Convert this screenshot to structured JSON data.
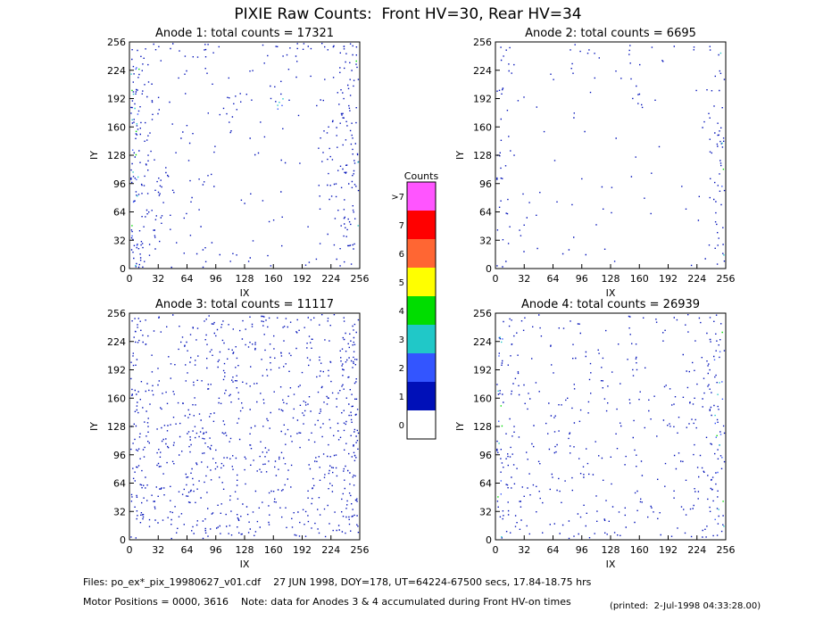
{
  "title": "PIXIE Raw Counts:  Front HV=30, Rear HV=34",
  "chart_data": [
    {
      "type": "heatmap",
      "title": "Anode 1: total counts = 17321",
      "xlabel": "IX",
      "ylabel": "IY",
      "xlim": [
        0,
        256
      ],
      "ylim": [
        0,
        256
      ],
      "xticks": [
        0,
        32,
        64,
        96,
        128,
        160,
        192,
        224,
        256
      ],
      "yticks": [
        0,
        32,
        64,
        96,
        128,
        160,
        192,
        224,
        256
      ]
    },
    {
      "type": "heatmap",
      "title": "Anode 2: total counts = 6695",
      "xlabel": "IX",
      "ylabel": "IY",
      "xlim": [
        0,
        256
      ],
      "ylim": [
        0,
        256
      ],
      "xticks": [
        0,
        32,
        64,
        96,
        128,
        160,
        192,
        224,
        256
      ],
      "yticks": [
        0,
        32,
        64,
        96,
        128,
        160,
        192,
        224,
        256
      ]
    },
    {
      "type": "heatmap",
      "title": "Anode 3: total counts = 11117",
      "xlabel": "IX",
      "ylabel": "IY",
      "xlim": [
        0,
        256
      ],
      "ylim": [
        0,
        256
      ],
      "xticks": [
        0,
        32,
        64,
        96,
        128,
        160,
        192,
        224,
        256
      ],
      "yticks": [
        0,
        32,
        64,
        96,
        128,
        160,
        192,
        224,
        256
      ]
    },
    {
      "type": "heatmap",
      "title": "Anode 4: total counts = 26939",
      "xlabel": "IX",
      "ylabel": "IY",
      "xlim": [
        0,
        256
      ],
      "ylim": [
        0,
        256
      ],
      "xticks": [
        0,
        32,
        64,
        96,
        128,
        160,
        192,
        224,
        256
      ],
      "yticks": [
        0,
        32,
        64,
        96,
        128,
        160,
        192,
        224,
        256
      ]
    }
  ],
  "colorbar": {
    "title": "Counts",
    "labels": [
      "0",
      "1",
      "2",
      "3",
      "4",
      "5",
      "6",
      "7",
      ">7"
    ],
    "colors": [
      "#ffffff",
      "#0010b8",
      "#3355ff",
      "#20c8c8",
      "#00dd00",
      "#ffff00",
      "#ff6633",
      "#ff0000",
      "#ff55ff"
    ]
  },
  "footer": [
    "Files: po_ex*_pix_19980627_v01.cdf    27 JUN 1998, DOY=178, UT=64224-67500 secs, 17.84-18.75 hrs",
    "Motor Positions = 0000, 3616    Note: data for Anodes 3 & 4 accumulated during Front HV-on times"
  ],
  "printed": "(printed:  2-Jul-1998 04:33:28.00)"
}
